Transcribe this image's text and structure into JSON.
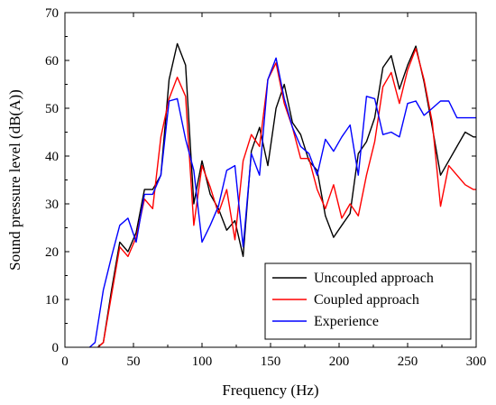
{
  "chart_data": {
    "type": "line",
    "xlabel": "Frequency (Hz)",
    "ylabel": "Sound pressure level (dB(A))",
    "xlim": [
      0,
      300
    ],
    "ylim": [
      0,
      70
    ],
    "xticks": [
      0,
      50,
      100,
      150,
      200,
      250,
      300
    ],
    "yticks": [
      0,
      10,
      20,
      30,
      40,
      50,
      60,
      70
    ],
    "grid": false,
    "legend_position": "bottom-right",
    "series": [
      {
        "name": "Uncoupled approach",
        "color": "#000000",
        "x": [
          24,
          28,
          34,
          40,
          46,
          52,
          58,
          64,
          70,
          76,
          82,
          88,
          94,
          100,
          106,
          112,
          118,
          124,
          130,
          136,
          142,
          148,
          154,
          160,
          166,
          172,
          178,
          184,
          190,
          196,
          202,
          208,
          214,
          220,
          226,
          232,
          238,
          244,
          250,
          256,
          262,
          268,
          274,
          280,
          286,
          292,
          298,
          300
        ],
        "y": [
          0,
          1,
          12,
          22,
          20,
          24,
          33,
          33,
          36,
          56,
          63.5,
          59,
          30,
          39,
          32,
          29,
          24.5,
          26.5,
          19,
          41,
          46,
          38,
          50,
          55,
          47,
          44.5,
          39,
          37,
          27.5,
          23,
          25.5,
          28,
          40.5,
          43,
          48,
          58.5,
          61,
          54,
          59,
          63,
          55.5,
          46,
          36,
          39,
          42,
          45,
          44,
          44
        ]
      },
      {
        "name": "Coupled approach",
        "color": "#ff0000",
        "x": [
          24,
          28,
          34,
          40,
          46,
          52,
          58,
          64,
          70,
          76,
          82,
          88,
          94,
          100,
          106,
          112,
          118,
          124,
          130,
          136,
          142,
          148,
          154,
          160,
          166,
          172,
          178,
          184,
          190,
          196,
          202,
          208,
          214,
          220,
          226,
          232,
          238,
          244,
          250,
          256,
          262,
          268,
          274,
          280,
          286,
          292,
          298,
          300
        ],
        "y": [
          0,
          1,
          11,
          21,
          19,
          23,
          31,
          29,
          44,
          52,
          56.5,
          52.5,
          25.5,
          38,
          33.5,
          28,
          33,
          22.5,
          39,
          44.5,
          42,
          56,
          59.5,
          51,
          46,
          39.5,
          39.5,
          33,
          29,
          34,
          27,
          30,
          27.5,
          36,
          43,
          54.5,
          57.5,
          51,
          58,
          62.5,
          56,
          47,
          29.5,
          38,
          36,
          34,
          33,
          33
        ]
      },
      {
        "name": "Experience",
        "color": "#0000ff",
        "x": [
          18,
          22,
          28,
          34,
          40,
          46,
          52,
          58,
          64,
          70,
          76,
          82,
          88,
          94,
          100,
          106,
          112,
          118,
          124,
          130,
          136,
          142,
          148,
          154,
          160,
          166,
          172,
          178,
          184,
          190,
          196,
          202,
          208,
          214,
          220,
          226,
          232,
          238,
          244,
          250,
          256,
          262,
          268,
          274,
          280,
          286,
          292,
          298,
          300
        ],
        "y": [
          0,
          1,
          12,
          19,
          25.5,
          27,
          22,
          32,
          32,
          36,
          51.5,
          52,
          43.5,
          37,
          22,
          25.5,
          29.5,
          37,
          38,
          21,
          40.5,
          36,
          56,
          60.5,
          52,
          46,
          42,
          40.5,
          36,
          43.5,
          41,
          44,
          46.5,
          36,
          52.5,
          52,
          44.5,
          45,
          44,
          51,
          51.5,
          48.5,
          50,
          51.5,
          51.5,
          48,
          48,
          48,
          48
        ]
      }
    ]
  }
}
